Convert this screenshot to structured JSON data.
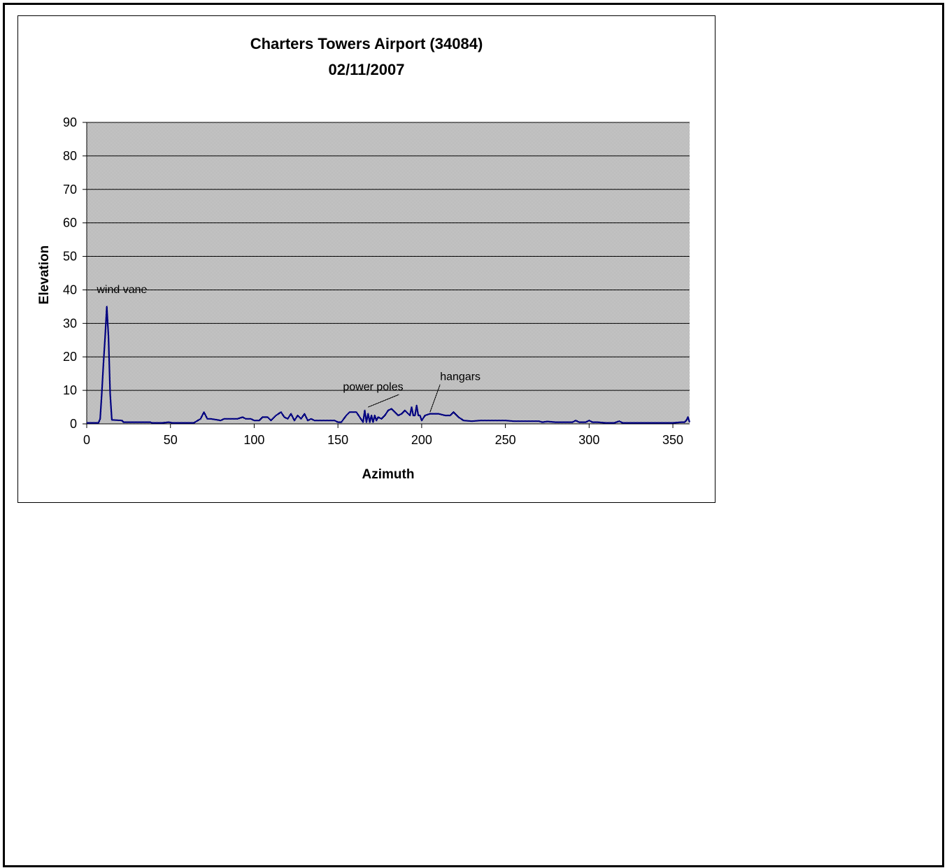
{
  "chart_data": {
    "type": "line",
    "title": "Charters Towers Airport (34084)",
    "subtitle": "02/11/2007",
    "xlabel": "Azimuth",
    "ylabel": "Elevation",
    "xlim": [
      0,
      360
    ],
    "ylim": [
      0,
      90
    ],
    "xticks": [
      0,
      50,
      100,
      150,
      200,
      250,
      300,
      350
    ],
    "yticks": [
      0,
      10,
      20,
      30,
      40,
      50,
      60,
      70,
      80,
      90
    ],
    "grid": "horizontal",
    "legend": "none",
    "colors": {
      "plot_bg": "#c0c0c0",
      "series": "#000080",
      "grid": "#000000"
    },
    "series": [
      {
        "x": [
          0,
          2,
          7,
          8,
          9,
          10,
          11,
          12,
          13,
          14,
          15,
          21,
          22,
          38,
          39,
          45,
          49,
          51,
          64,
          68,
          70,
          72,
          74,
          78,
          80,
          82,
          84,
          88,
          90,
          93,
          95,
          98,
          100,
          103,
          105,
          108,
          110,
          113,
          116,
          118,
          120,
          122,
          124,
          126,
          128,
          130,
          132,
          134,
          136,
          138,
          148,
          150,
          152,
          155,
          157,
          161,
          163,
          165,
          166,
          167,
          168,
          169,
          170,
          171,
          172,
          173,
          174,
          176,
          178,
          180,
          182,
          184,
          186,
          188,
          190,
          192,
          193,
          194,
          195,
          196,
          197,
          198,
          199,
          200,
          202,
          205,
          210,
          214,
          217,
          219,
          222,
          225,
          230,
          235,
          250,
          255,
          270,
          272,
          275,
          280,
          285,
          290,
          292,
          294,
          298,
          300,
          302,
          305,
          310,
          315,
          318,
          320,
          330,
          350,
          355,
          357,
          358,
          359,
          360
        ],
        "y": [
          0.3,
          0.3,
          0.3,
          1.5,
          9,
          18,
          26,
          35,
          26,
          9,
          1.2,
          1,
          0.5,
          0.5,
          0.3,
          0.3,
          0.5,
          0.3,
          0.3,
          1.5,
          3.5,
          1.5,
          1.5,
          1.2,
          1,
          1.5,
          1.5,
          1.5,
          1.5,
          2,
          1.5,
          1.5,
          1,
          1,
          2,
          2,
          1,
          2.5,
          3.5,
          2,
          1.5,
          3,
          1,
          2.5,
          1.5,
          3,
          1,
          1.5,
          1,
          1,
          1,
          0.5,
          0.5,
          2.5,
          3.5,
          3.5,
          2,
          0.5,
          4,
          0.5,
          3,
          0.5,
          2.5,
          0.5,
          2.5,
          1,
          2,
          1.5,
          2.5,
          4,
          4.5,
          3.5,
          2.5,
          3,
          4,
          3,
          2.5,
          5,
          2.5,
          2.5,
          5.5,
          2.5,
          2.5,
          1,
          2.5,
          3,
          3,
          2.5,
          2.5,
          3.5,
          2,
          1,
          0.8,
          1,
          1,
          0.8,
          0.8,
          0.5,
          0.7,
          0.5,
          0.5,
          0.5,
          1,
          0.5,
          0.5,
          1,
          0.5,
          0.5,
          0.3,
          0.3,
          0.8,
          0.3,
          0.3,
          0.3,
          0.5,
          0.5,
          1,
          2,
          0.5
        ],
        "color": "#000080"
      }
    ],
    "annotations": [
      {
        "text": "wind vane",
        "x": 6,
        "y": 39
      },
      {
        "text": "power poles",
        "x": 153,
        "y": 10,
        "pointer_to": [
          168,
          5
        ]
      },
      {
        "text": "hangars",
        "x": 211,
        "y": 13,
        "pointer_to": [
          205,
          3.5
        ]
      }
    ]
  }
}
